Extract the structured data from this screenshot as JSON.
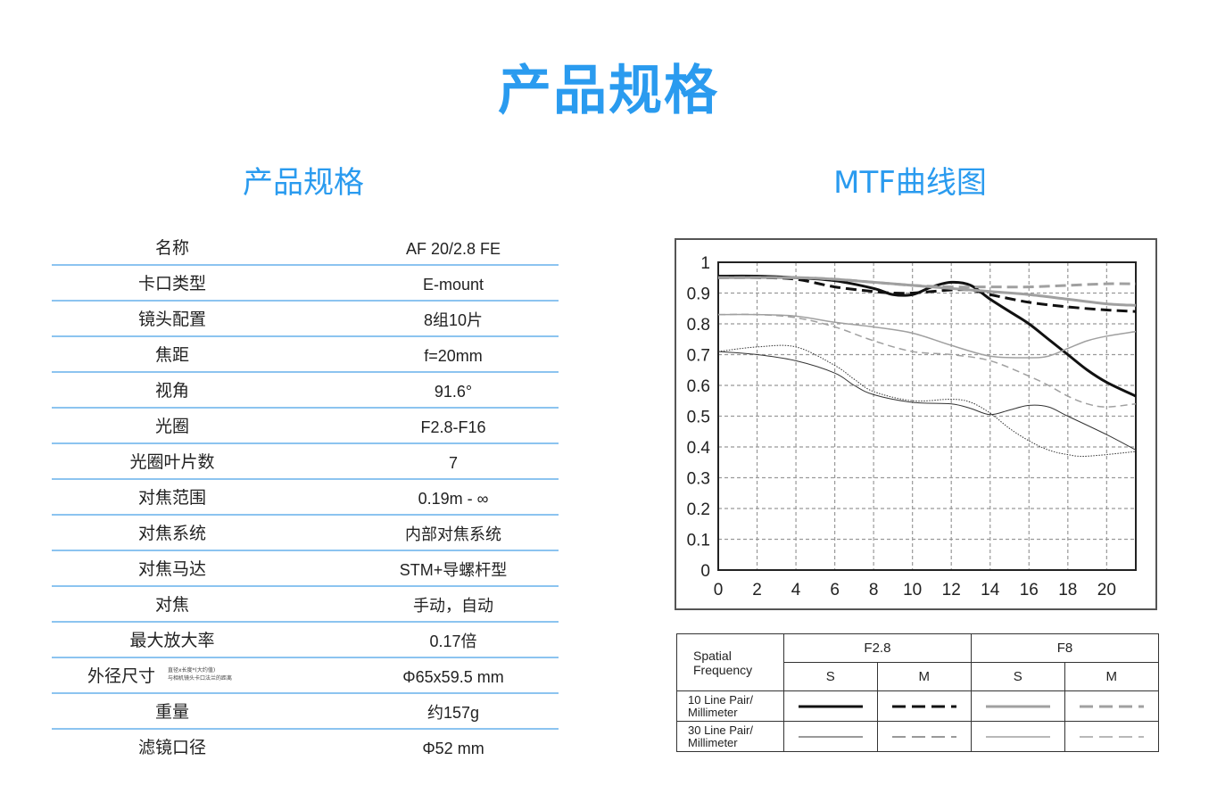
{
  "page": {
    "main_title": "产品规格",
    "spec_title": "产品规格",
    "mtf_title": "MTF曲线图"
  },
  "specs": [
    {
      "label": "名称",
      "value": "AF 20/2.8 FE"
    },
    {
      "label": "卡口类型",
      "value": "E-mount"
    },
    {
      "label": "镜头配置",
      "value": "8组10片"
    },
    {
      "label": "焦距",
      "value": "f=20mm"
    },
    {
      "label": "视角",
      "value": "91.6°"
    },
    {
      "label": "光圈",
      "value": "F2.8-F16"
    },
    {
      "label": "光圈叶片数",
      "value": "7"
    },
    {
      "label": "对焦范围",
      "value": "0.19m - ∞"
    },
    {
      "label": "对焦系统",
      "value": "内部对焦系统"
    },
    {
      "label": "对焦马达",
      "value": "STM+导螺杆型"
    },
    {
      "label": "对焦",
      "value": "手动，自动"
    },
    {
      "label": "最大放大率",
      "value": "0.17倍"
    },
    {
      "label": "外径尺寸",
      "value": "Φ65x59.5 mm",
      "note_line1": "直径x长度*(大约值)",
      "note_line2": "与相机镜头卡口法兰的距离"
    },
    {
      "label": "重量",
      "value": "约157g"
    },
    {
      "label": "滤镜口径",
      "value": "Φ52 mm"
    }
  ],
  "legend": {
    "freq_line1": "Spatial",
    "freq_line2": "Frequency",
    "groups": [
      "F2.8",
      "F8"
    ],
    "sub": [
      "S",
      "M",
      "S",
      "M"
    ],
    "row10_line1": "10 Line Pair/",
    "row10_line2": "Millimeter",
    "row30_line1": "30 Line Pair/",
    "row30_line2": "Millimeter"
  },
  "colors": {
    "accent": "#2a9bef",
    "divider": "#8cc4f0",
    "f28": "#111111",
    "f8": "#999999"
  },
  "chart_data": {
    "type": "line",
    "x_ticks": [
      0,
      2,
      4,
      6,
      8,
      10,
      12,
      14,
      16,
      18,
      20
    ],
    "y_ticks": [
      "0",
      "0.1",
      "0.2",
      "0.3",
      "0.4",
      "0.5",
      "0.6",
      "0.7",
      "0.8",
      "0.9",
      "1"
    ],
    "xlim": [
      0,
      21.5
    ],
    "ylim": [
      0,
      1
    ],
    "grid": true,
    "series": [
      {
        "aperture": "F2.8",
        "orientation": "S",
        "freq": 10,
        "color": "#111111",
        "style": "solid",
        "width": 3,
        "points": [
          [
            0,
            0.955
          ],
          [
            2,
            0.955
          ],
          [
            4,
            0.95
          ],
          [
            6,
            0.94
          ],
          [
            8,
            0.915
          ],
          [
            9,
            0.895
          ],
          [
            10,
            0.895
          ],
          [
            11,
            0.92
          ],
          [
            12,
            0.935
          ],
          [
            13,
            0.925
          ],
          [
            14,
            0.88
          ],
          [
            15,
            0.84
          ],
          [
            16,
            0.8
          ],
          [
            17,
            0.75
          ],
          [
            18,
            0.7
          ],
          [
            19,
            0.65
          ],
          [
            20,
            0.61
          ],
          [
            21.5,
            0.565
          ]
        ]
      },
      {
        "aperture": "F2.8",
        "orientation": "M",
        "freq": 10,
        "color": "#111111",
        "style": "dash",
        "width": 3,
        "points": [
          [
            0,
            0.95
          ],
          [
            2,
            0.95
          ],
          [
            4,
            0.945
          ],
          [
            6,
            0.92
          ],
          [
            8,
            0.905
          ],
          [
            9,
            0.9
          ],
          [
            10,
            0.9
          ],
          [
            11,
            0.905
          ],
          [
            12,
            0.91
          ],
          [
            13,
            0.91
          ],
          [
            14,
            0.895
          ],
          [
            16,
            0.87
          ],
          [
            18,
            0.855
          ],
          [
            20,
            0.845
          ],
          [
            21.5,
            0.84
          ]
        ]
      },
      {
        "aperture": "F8",
        "orientation": "S",
        "freq": 10,
        "color": "#a0a0a0",
        "style": "solid",
        "width": 3,
        "points": [
          [
            0,
            0.95
          ],
          [
            4,
            0.95
          ],
          [
            6,
            0.945
          ],
          [
            8,
            0.935
          ],
          [
            10,
            0.925
          ],
          [
            12,
            0.915
          ],
          [
            14,
            0.905
          ],
          [
            16,
            0.895
          ],
          [
            18,
            0.88
          ],
          [
            20,
            0.865
          ],
          [
            21.5,
            0.86
          ]
        ]
      },
      {
        "aperture": "F8",
        "orientation": "M",
        "freq": 10,
        "color": "#a0a0a0",
        "style": "dash",
        "width": 3,
        "points": [
          [
            0,
            0.95
          ],
          [
            4,
            0.95
          ],
          [
            6,
            0.945
          ],
          [
            8,
            0.935
          ],
          [
            10,
            0.925
          ],
          [
            12,
            0.92
          ],
          [
            14,
            0.92
          ],
          [
            16,
            0.92
          ],
          [
            18,
            0.925
          ],
          [
            20,
            0.93
          ],
          [
            21.5,
            0.93
          ]
        ]
      },
      {
        "aperture": "F2.8",
        "orientation": "S",
        "freq": 30,
        "color": "#333333",
        "style": "solid",
        "width": 1,
        "points": [
          [
            0,
            0.71
          ],
          [
            2,
            0.7
          ],
          [
            4,
            0.68
          ],
          [
            6,
            0.64
          ],
          [
            7,
            0.6
          ],
          [
            8,
            0.57
          ],
          [
            10,
            0.545
          ],
          [
            12,
            0.54
          ],
          [
            13,
            0.525
          ],
          [
            14,
            0.505
          ],
          [
            15,
            0.52
          ],
          [
            16,
            0.535
          ],
          [
            17,
            0.53
          ],
          [
            18,
            0.5
          ],
          [
            20,
            0.44
          ],
          [
            21.5,
            0.39
          ]
        ]
      },
      {
        "aperture": "F2.8",
        "orientation": "M",
        "freq": 30,
        "color": "#333333",
        "style": "dot",
        "width": 1,
        "points": [
          [
            0,
            0.71
          ],
          [
            2,
            0.725
          ],
          [
            4,
            0.725
          ],
          [
            6,
            0.665
          ],
          [
            7,
            0.62
          ],
          [
            8,
            0.58
          ],
          [
            10,
            0.55
          ],
          [
            12,
            0.555
          ],
          [
            13,
            0.545
          ],
          [
            14,
            0.51
          ],
          [
            15,
            0.46
          ],
          [
            16,
            0.42
          ],
          [
            17,
            0.39
          ],
          [
            18,
            0.375
          ],
          [
            19,
            0.37
          ],
          [
            21.5,
            0.385
          ]
        ]
      },
      {
        "aperture": "F8",
        "orientation": "S",
        "freq": 30,
        "color": "#a0a0a0",
        "style": "solid",
        "width": 1.5,
        "points": [
          [
            0,
            0.83
          ],
          [
            2,
            0.83
          ],
          [
            4,
            0.825
          ],
          [
            6,
            0.805
          ],
          [
            8,
            0.79
          ],
          [
            10,
            0.77
          ],
          [
            12,
            0.73
          ],
          [
            14,
            0.695
          ],
          [
            16,
            0.69
          ],
          [
            17,
            0.695
          ],
          [
            18,
            0.72
          ],
          [
            19,
            0.745
          ],
          [
            20,
            0.76
          ],
          [
            21.5,
            0.775
          ]
        ]
      },
      {
        "aperture": "F8",
        "orientation": "M",
        "freq": 30,
        "color": "#a0a0a0",
        "style": "dash",
        "width": 1.5,
        "points": [
          [
            0,
            0.83
          ],
          [
            2,
            0.83
          ],
          [
            4,
            0.82
          ],
          [
            6,
            0.79
          ],
          [
            8,
            0.745
          ],
          [
            10,
            0.71
          ],
          [
            12,
            0.7
          ],
          [
            14,
            0.68
          ],
          [
            16,
            0.63
          ],
          [
            17,
            0.6
          ],
          [
            18,
            0.565
          ],
          [
            19,
            0.54
          ],
          [
            20,
            0.53
          ],
          [
            21.5,
            0.54
          ]
        ]
      }
    ]
  }
}
